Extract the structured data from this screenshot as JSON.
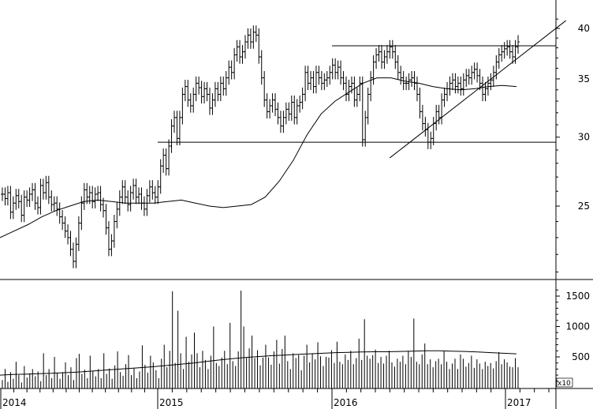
{
  "chart_data": [
    {
      "type": "ohlc",
      "panel": "price",
      "title": "",
      "xlabel": "",
      "ylabel": "",
      "y_scale": "log",
      "ylim": [
        20,
        42
      ],
      "y_ticks": [
        25,
        30,
        35,
        40
      ],
      "x_ticks": [
        "2014",
        "2015",
        "2016",
        "2017"
      ],
      "x_range": [
        "2014-01",
        "2017-03"
      ],
      "grid": false,
      "bar_color": "#000000",
      "series": [
        {
          "kind": "ohlc_weekly_close",
          "values": [
            25.8,
            25.5,
            25.9,
            24.6,
            25.2,
            25.7,
            25.3,
            24.4,
            25.6,
            25.4,
            25.8,
            26.1,
            25.2,
            24.9,
            26.4,
            25.9,
            26.6,
            25.6,
            25.1,
            25.2,
            24.8,
            24.3,
            23.9,
            23.4,
            23.0,
            22.3,
            21.6,
            22.6,
            23.9,
            25.2,
            26.1,
            25.6,
            25.9,
            25.3,
            25.8,
            25.9,
            25.1,
            24.7,
            23.6,
            22.3,
            22.8,
            24.0,
            24.8,
            25.6,
            26.3,
            25.6,
            25.1,
            25.9,
            26.4,
            25.6,
            25.8,
            25.2,
            24.8,
            25.7,
            26.3,
            25.9,
            25.6,
            26.3,
            27.8,
            28.6,
            27.6,
            29.3,
            30.9,
            31.6,
            29.9,
            31.6,
            33.6,
            34.3,
            33.1,
            32.6,
            33.6,
            34.6,
            34.2,
            33.4,
            34.1,
            33.6,
            32.4,
            33.1,
            34.1,
            33.6,
            34.6,
            34.1,
            35.1,
            36.1,
            35.6,
            37.3,
            38.1,
            37.1,
            37.6,
            38.6,
            39.3,
            38.6,
            39.6,
            39.3,
            37.1,
            35.1,
            33.1,
            32.1,
            32.6,
            33.1,
            32.3,
            31.6,
            30.9,
            31.6,
            32.3,
            31.9,
            32.9,
            31.6,
            32.6,
            32.9,
            33.6,
            35.6,
            34.6,
            35.1,
            34.3,
            35.6,
            35.1,
            34.6,
            34.9,
            35.1,
            35.6,
            36.3,
            35.6,
            36.1,
            35.1,
            34.6,
            33.6,
            34.3,
            34.6,
            33.1,
            33.6,
            34.6,
            29.8,
            31.6,
            33.6,
            35.1,
            36.6,
            37.3,
            37.6,
            36.6,
            37.1,
            37.6,
            38.1,
            37.6,
            36.6,
            35.6,
            35.1,
            34.6,
            34.6,
            34.9,
            35.1,
            34.6,
            33.6,
            32.1,
            31.1,
            30.6,
            29.6,
            29.9,
            31.1,
            32.1,
            31.6,
            33.1,
            33.6,
            34.1,
            34.6,
            34.9,
            34.3,
            34.6,
            34.1,
            34.9,
            35.3,
            35.1,
            35.6,
            35.9,
            35.3,
            34.6,
            33.6,
            34.1,
            34.6,
            34.9,
            35.6,
            36.6,
            37.3,
            37.6,
            37.9,
            38.1,
            37.6,
            37.1,
            38.1,
            38.6
          ]
        },
        {
          "kind": "moving_average",
          "values": [
            23.0,
            23.4,
            23.8,
            24.3,
            24.7,
            25.0,
            25.3,
            25.4,
            25.3,
            25.2,
            25.2,
            25.2,
            25.3,
            25.4,
            25.2,
            25.0,
            24.9,
            25.0,
            25.1,
            25.6,
            26.7,
            28.2,
            30.2,
            31.9,
            33.0,
            33.8,
            34.6,
            35.1,
            35.1,
            34.8,
            34.6,
            34.3,
            34.1,
            34.0,
            34.1,
            34.3,
            34.4,
            34.3
          ]
        }
      ],
      "reference_lines": [
        {
          "kind": "horizontal",
          "y": 38.2,
          "x_from": "2016-01",
          "x_to": "2017-03"
        },
        {
          "kind": "horizontal",
          "y": 29.6,
          "x_from": "2015-01",
          "x_to": "2017-03"
        },
        {
          "kind": "trendline",
          "from": [
            "2016-05",
            28.4
          ],
          "to": [
            "2017-03",
            40.5
          ]
        }
      ]
    },
    {
      "type": "bar",
      "panel": "volume",
      "title": "",
      "xlabel": "",
      "ylabel": "",
      "ylim": [
        0,
        1700
      ],
      "y_ticks": [
        500,
        1000,
        1500
      ],
      "multiplier_label": "x10",
      "bar_color": "#000000",
      "series": [
        {
          "kind": "volume",
          "values": [
            120,
            300,
            90,
            250,
            140,
            420,
            200,
            80,
            350,
            160,
            230,
            300,
            180,
            260,
            100,
            560,
            200,
            300,
            150,
            500,
            230,
            140,
            250,
            410,
            200,
            330,
            120,
            480,
            550,
            220,
            290,
            150,
            520,
            260,
            180,
            300,
            150,
            560,
            220,
            310,
            140,
            360,
            590,
            250,
            190,
            380,
            530,
            200,
            310,
            150,
            260,
            690,
            370,
            240,
            520,
            410,
            280,
            150,
            470,
            700,
            330,
            600,
            1580,
            400,
            1260,
            560,
            300,
            830,
            420,
            540,
            900,
            560,
            330,
            600,
            450,
            300,
            520,
            1000,
            400,
            350,
            490,
            600,
            380,
            1060,
            430,
            350,
            590,
            1590,
            1000,
            490,
            640,
            850,
            480,
            610,
            360,
            490,
            700,
            490,
            370,
            590,
            780,
            390,
            630,
            850,
            430,
            300,
            560,
            480,
            530,
            280,
            520,
            700,
            410,
            560,
            460,
            740,
            510,
            350,
            500,
            490,
            610,
            400,
            750,
            420,
            380,
            540,
            450,
            600,
            380,
            480,
            800,
            450,
            1120,
            520,
            470,
            530,
            620,
            400,
            500,
            390,
            520,
            600,
            410,
            340,
            470,
            420,
            520,
            380,
            600,
            500,
            1130,
            420,
            380,
            540,
            720,
            380,
            460,
            330,
            430,
            470,
            380,
            590,
            420,
            300,
            390,
            470,
            300,
            540,
            470,
            340,
            400,
            520,
            320,
            460,
            390,
            300,
            420,
            350,
            400,
            310,
            430,
            580,
            380,
            460,
            410,
            340,
            330,
            480,
            330
          ]
        },
        {
          "kind": "moving_average",
          "values": [
            200,
            210,
            215,
            225,
            230,
            240,
            250,
            265,
            280,
            295,
            310,
            325,
            340,
            360,
            380,
            400,
            425,
            450,
            470,
            490,
            505,
            520,
            530,
            540,
            550,
            560,
            570,
            575,
            580,
            585,
            585,
            590,
            595,
            600,
            600,
            595,
            590,
            580,
            570,
            560,
            550
          ]
        }
      ]
    }
  ]
}
